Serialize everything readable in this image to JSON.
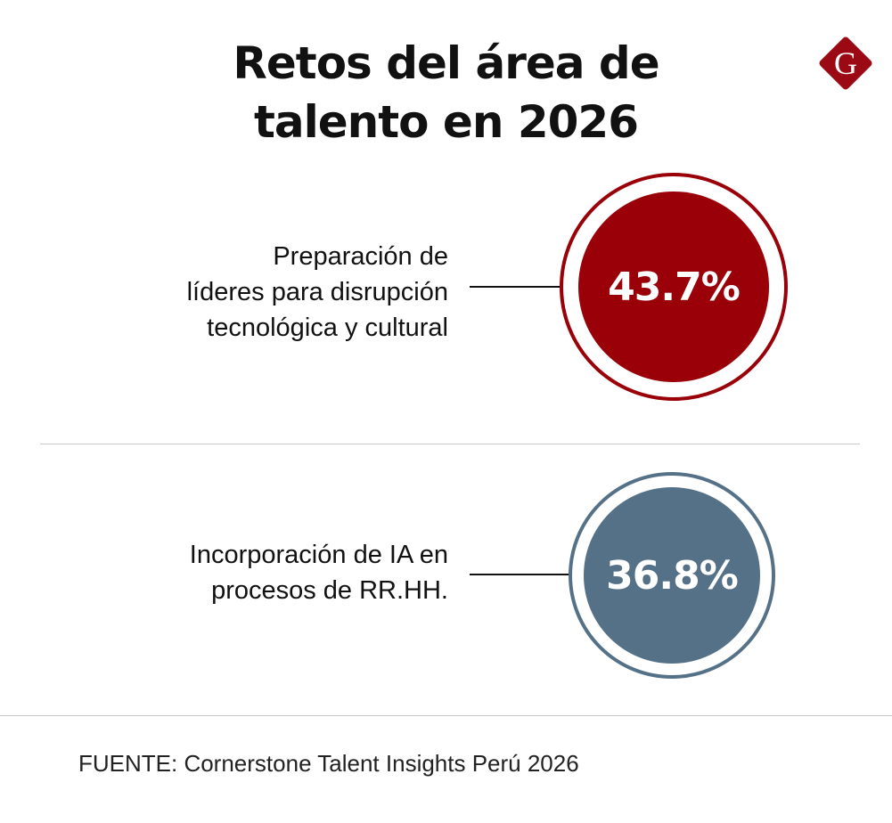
{
  "title": {
    "line1": "Retos del área de",
    "line2": "talento en 2026"
  },
  "logo": {
    "letter": "G",
    "color": "#9b0a14"
  },
  "items": [
    {
      "label_lines": [
        "Preparación de",
        "líderes para disrupción",
        "tecnológica y cultural"
      ],
      "value": "43.7%",
      "percent": 43.7,
      "color": "#990008"
    },
    {
      "label_lines": [
        "Incorporación de IA en",
        "procesos de RR.HH."
      ],
      "value": "36.8%",
      "percent": 36.8,
      "color": "#557188"
    }
  ],
  "footer": "FUENTE: Cornerstone Talent Insights Perú 2026"
}
